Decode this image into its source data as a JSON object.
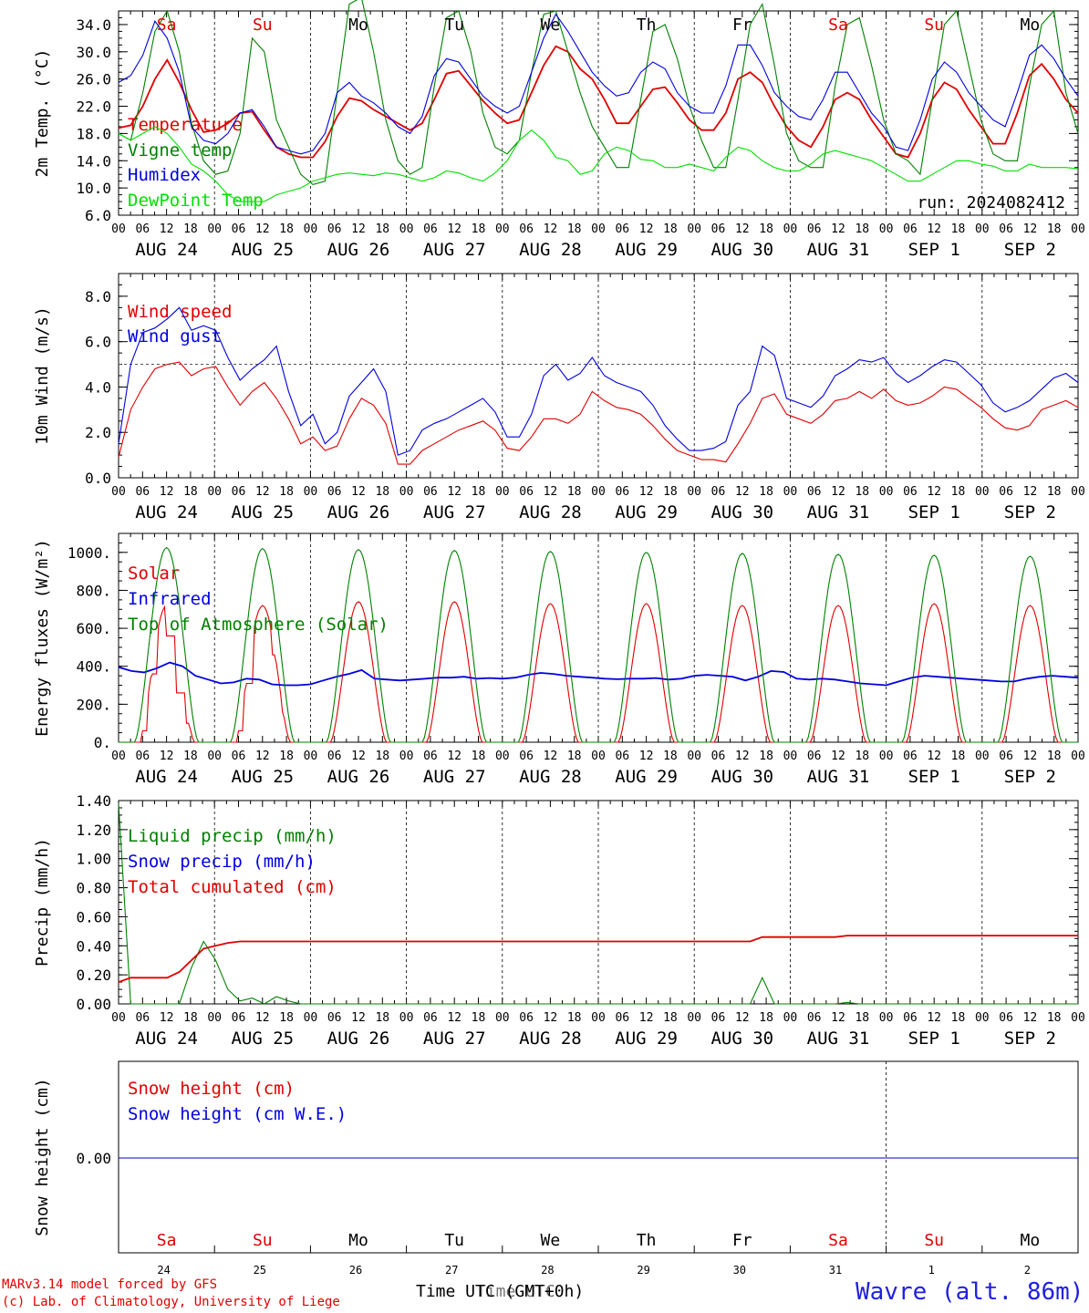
{
  "chart_data": [
    {
      "type": "line",
      "id": "temp",
      "ylabel": "2m Temp. (°C)",
      "ylim": [
        6,
        36
      ],
      "yticks": [
        "6.0",
        "10.0",
        "14.0",
        "18.0",
        "22.0",
        "26.0",
        "30.0",
        "34.0"
      ],
      "note": "run: 2024082412",
      "series": [
        {
          "name": "Temperature",
          "color": "#e00000",
          "values": [
            18.8,
            19.2,
            22,
            26,
            28.8,
            25.5,
            21.5,
            18.2,
            18.5,
            19.5,
            21,
            21.2,
            18.5,
            16,
            15,
            14.5,
            14.5,
            16.8,
            20.5,
            23.2,
            22.8,
            21.5,
            20.5,
            19.5,
            18.5,
            19.5,
            23,
            26.8,
            27.2,
            25,
            22.8,
            21,
            19.5,
            20,
            24,
            28,
            30.8,
            30,
            27.5,
            26,
            23,
            19.5,
            19.5,
            22,
            24.5,
            24.8,
            22.5,
            20,
            18.5,
            18.5,
            21,
            26,
            27,
            25.5,
            22,
            19,
            17,
            16,
            19,
            23,
            24,
            23,
            20,
            17.5,
            15,
            14.5,
            18,
            23,
            25.5,
            24.5,
            21.5,
            19,
            16.5,
            16.5,
            21,
            26.5,
            28.2,
            26,
            23,
            21
          ]
        },
        {
          "name": "Vigne temp",
          "color": "#008000",
          "values": [
            18,
            17,
            24,
            33,
            36,
            30,
            19.5,
            14,
            12,
            12.5,
            18,
            32,
            30,
            20,
            16,
            12,
            10.5,
            11,
            24,
            37,
            38,
            30,
            20,
            14,
            12,
            13,
            25,
            35,
            36,
            30,
            21,
            16,
            15,
            17,
            27,
            35.5,
            36,
            30,
            24,
            19,
            16,
            13,
            13,
            23,
            33,
            34,
            29,
            22,
            17,
            13,
            13,
            23,
            34,
            37,
            28,
            18,
            14,
            13,
            13,
            25,
            34,
            35,
            28,
            20,
            15,
            14,
            12,
            23,
            34,
            36,
            28,
            20,
            15,
            14,
            14,
            25,
            34,
            36,
            24,
            18
          ]
        },
        {
          "name": "Humidex",
          "color": "#0000e0",
          "values": [
            25.5,
            26.5,
            29.5,
            34.5,
            32,
            27,
            19,
            17,
            16.5,
            18,
            21,
            21.5,
            19,
            16,
            15.5,
            15,
            15.5,
            18,
            24,
            25.5,
            23.5,
            22.5,
            21,
            19,
            18,
            20.5,
            26.5,
            29,
            28.5,
            26,
            23.5,
            22,
            21,
            22,
            27,
            32,
            35.5,
            33,
            30,
            27,
            25,
            23.5,
            24,
            27,
            28.5,
            27.5,
            24,
            22,
            21,
            21,
            25,
            31,
            31,
            28,
            24,
            22,
            20.5,
            20,
            23,
            27,
            27,
            24,
            21,
            19,
            16,
            15.5,
            20,
            26,
            28.5,
            27,
            24,
            22,
            20,
            19,
            24,
            29.5,
            31,
            29,
            26,
            23.5
          ]
        },
        {
          "name": "DewPoint Temp",
          "color": "#00e000",
          "values": [
            18,
            17,
            18,
            19,
            18,
            16,
            13.5,
            12.5,
            11,
            9,
            8,
            8,
            8,
            9,
            9.5,
            10,
            11,
            11.5,
            12,
            12.2,
            12,
            11.8,
            12.2,
            12,
            11.5,
            11,
            11.5,
            12.5,
            12.2,
            11.5,
            11,
            12.2,
            14,
            17,
            18.5,
            17,
            14.5,
            14,
            12,
            12.5,
            15,
            16,
            15.5,
            14.2,
            14,
            13,
            13,
            13.5,
            13,
            12.5,
            14.5,
            16,
            15.5,
            14,
            13,
            12.5,
            12.5,
            13.5,
            15,
            15.5,
            15,
            14.5,
            14,
            13,
            12,
            11,
            11,
            12,
            13,
            14,
            14,
            13.5,
            13.2,
            12.5,
            12.5,
            13.5,
            13,
            13,
            13,
            12.8
          ]
        }
      ]
    },
    {
      "type": "line",
      "id": "wind",
      "ylabel": "10m Wind (m/s)",
      "ylim": [
        0,
        9
      ],
      "yticks": [
        "0.0",
        "2.0",
        "4.0",
        "6.0",
        "8.0"
      ],
      "ref_line": 5,
      "series": [
        {
          "name": "Wind speed",
          "color": "#e00000",
          "values": [
            0.9,
            3,
            4,
            4.8,
            5,
            5.1,
            4.5,
            4.8,
            4.9,
            4,
            3.2,
            3.8,
            4.2,
            3.5,
            2.6,
            1.5,
            1.8,
            1.2,
            1.4,
            2.6,
            3.5,
            3.2,
            2.4,
            0.6,
            0.6,
            1.2,
            1.5,
            1.8,
            2.1,
            2.3,
            2.5,
            2.1,
            1.3,
            1.2,
            1.8,
            2.6,
            2.6,
            2.4,
            2.8,
            3.8,
            3.4,
            3.1,
            3,
            2.8,
            2.3,
            1.7,
            1.2,
            1,
            0.8,
            0.8,
            0.7,
            1.5,
            2.4,
            3.5,
            3.7,
            2.8,
            2.6,
            2.4,
            2.8,
            3.4,
            3.5,
            3.8,
            3.5,
            3.9,
            3.4,
            3.2,
            3.3,
            3.6,
            4,
            3.9,
            3.5,
            3.1,
            2.6,
            2.2,
            2.1,
            2.3,
            3,
            3.2,
            3.4,
            3.1
          ]
        },
        {
          "name": "Wind gust",
          "color": "#0000e0",
          "values": [
            1.5,
            5,
            6.4,
            6.6,
            7,
            7.5,
            6.5,
            6.7,
            6.5,
            5.3,
            4.3,
            4.8,
            5.2,
            5.8,
            3.8,
            2.3,
            2.8,
            1.5,
            2,
            3.6,
            4.2,
            4.8,
            3.8,
            1,
            1.2,
            2.1,
            2.4,
            2.6,
            2.9,
            3.2,
            3.5,
            2.9,
            1.8,
            1.8,
            2.8,
            4.5,
            5,
            4.3,
            4.6,
            5.3,
            4.5,
            4.2,
            4,
            3.8,
            3.2,
            2.3,
            1.7,
            1.2,
            1.2,
            1.3,
            1.6,
            3.2,
            3.8,
            5.8,
            5.4,
            3.5,
            3.3,
            3.1,
            3.6,
            4.5,
            4.8,
            5.2,
            5.1,
            5.3,
            4.6,
            4.2,
            4.5,
            4.9,
            5.2,
            5.1,
            4.6,
            4.1,
            3.3,
            2.9,
            3.1,
            3.4,
            3.9,
            4.4,
            4.6,
            4.2
          ]
        }
      ]
    },
    {
      "type": "line",
      "id": "energy",
      "ylabel": "Energy fluxes (W/m²)",
      "ylim": [
        0,
        1100
      ],
      "yticks": [
        "0.",
        "200.",
        "400.",
        "600.",
        "800.",
        "1000."
      ],
      "solar_peaks": [
        720,
        720,
        740,
        740,
        730,
        730,
        720,
        720,
        730,
        720
      ],
      "toa_peaks": [
        1025,
        1020,
        1015,
        1010,
        1005,
        1000,
        995,
        990,
        985,
        980
      ],
      "solar_day0_shape": [
        0,
        0,
        0,
        300,
        700,
        500,
        200,
        40,
        0,
        0
      ],
      "solar_day1_shape": [
        0,
        0,
        0,
        250,
        650,
        750,
        400,
        100,
        0,
        0
      ],
      "series": [
        {
          "name": "Solar",
          "color": "#e00000",
          "values": []
        },
        {
          "name": "Infrared",
          "color": "#0000e0",
          "values": [
            395,
            375,
            368,
            390,
            420,
            400,
            350,
            330,
            310,
            315,
            335,
            330,
            305,
            300,
            300,
            305,
            325,
            345,
            360,
            380,
            335,
            330,
            325,
            330,
            335,
            340,
            340,
            345,
            335,
            338,
            335,
            340,
            355,
            365,
            360,
            350,
            345,
            340,
            335,
            332,
            335,
            335,
            338,
            330,
            335,
            350,
            355,
            350,
            345,
            325,
            345,
            375,
            370,
            335,
            330,
            335,
            330,
            320,
            310,
            305,
            300,
            320,
            340,
            350,
            345,
            340,
            335,
            330,
            325,
            320,
            320,
            335,
            345,
            350,
            345,
            340
          ]
        },
        {
          "name": "Top of Atmosphere (Solar)",
          "color": "#008000",
          "values": []
        }
      ]
    },
    {
      "type": "line",
      "id": "precip",
      "ylabel": "Precip (mm/h)",
      "ylim": [
        0,
        1.4
      ],
      "yticks": [
        "0.00",
        "0.20",
        "0.40",
        "0.60",
        "0.80",
        "1.00",
        "1.20",
        "1.40"
      ],
      "series": [
        {
          "name": "Liquid precip (mm/h)",
          "color": "#008000",
          "values": [
            1.38,
            0,
            0,
            0,
            0,
            0,
            0.25,
            0.43,
            0.3,
            0.1,
            0.02,
            0.04,
            0,
            0.05,
            0.02,
            0,
            0,
            0,
            0,
            0,
            0,
            0,
            0,
            0,
            0,
            0,
            0,
            0,
            0,
            0,
            0,
            0,
            0,
            0,
            0,
            0,
            0,
            0,
            0,
            0,
            0,
            0,
            0,
            0,
            0,
            0,
            0,
            0,
            0,
            0,
            0,
            0,
            0,
            0.18,
            0,
            0,
            0,
            0,
            0,
            0,
            0.01,
            0,
            0,
            0,
            0,
            0,
            0,
            0,
            0,
            0,
            0,
            0,
            0,
            0,
            0,
            0,
            0,
            0,
            0,
            0
          ]
        },
        {
          "name": "Snow precip (mm/h)",
          "color": "#0000e0",
          "values": []
        },
        {
          "name": "Total cumulated (cm)",
          "color": "#e00000",
          "values": [
            0.15,
            0.18,
            0.18,
            0.18,
            0.18,
            0.22,
            0.3,
            0.38,
            0.4,
            0.42,
            0.43,
            0.43,
            0.43,
            0.43,
            0.43,
            0.43,
            0.43,
            0.43,
            0.43,
            0.43,
            0.43,
            0.43,
            0.43,
            0.43,
            0.43,
            0.43,
            0.43,
            0.43,
            0.43,
            0.43,
            0.43,
            0.43,
            0.43,
            0.43,
            0.43,
            0.43,
            0.43,
            0.43,
            0.43,
            0.43,
            0.43,
            0.43,
            0.43,
            0.43,
            0.43,
            0.43,
            0.43,
            0.43,
            0.43,
            0.43,
            0.43,
            0.43,
            0.43,
            0.46,
            0.46,
            0.46,
            0.46,
            0.46,
            0.46,
            0.46,
            0.47,
            0.47,
            0.47,
            0.47,
            0.47,
            0.47,
            0.47,
            0.47,
            0.47,
            0.47,
            0.47,
            0.47,
            0.47,
            0.47,
            0.47,
            0.47,
            0.47,
            0.47,
            0.47,
            0.47
          ]
        }
      ]
    },
    {
      "type": "line",
      "id": "snow",
      "ylabel": "Snow height (cm)",
      "yticks": [
        "0.00"
      ],
      "series": [
        {
          "name": "Snow height (cm)",
          "color": "#e00000",
          "values": [
            0,
            0
          ]
        },
        {
          "name": "Snow height (cm W.E.)",
          "color": "#0000e0",
          "values": [
            0,
            0
          ]
        }
      ]
    }
  ],
  "hour_ticks": [
    "00",
    "06",
    "12",
    "18"
  ],
  "final_tick": "00",
  "dates": [
    "AUG 24",
    "AUG 25",
    "AUG 26",
    "AUG 27",
    "AUG 28",
    "AUG 29",
    "AUG 30",
    "AUG 31",
    "SEP  1",
    "SEP  2"
  ],
  "weekdays": [
    {
      "label": "Sa",
      "color": "#e00000"
    },
    {
      "label": "Su",
      "color": "#e00000"
    },
    {
      "label": "Mo",
      "color": "#000000"
    },
    {
      "label": "Tu",
      "color": "#000000"
    },
    {
      "label": "We",
      "color": "#000000"
    },
    {
      "label": "Th",
      "color": "#000000"
    },
    {
      "label": "Fr",
      "color": "#000000"
    },
    {
      "label": "Sa",
      "color": "#e00000"
    },
    {
      "label": "Su",
      "color": "#e00000"
    },
    {
      "label": "Mo",
      "color": "#000000"
    }
  ],
  "day_numbers": [
    "24",
    "25",
    "26",
    "27",
    "28",
    "29",
    "30",
    "31",
    "1",
    "2"
  ],
  "footer": {
    "credit_line1": "MARv3.14 model forced by GFS",
    "credit_line2": "(c) Lab. of Climatology, University of Liege",
    "time_label": "Time UTC (GMT+0h)",
    "overlay_label": "Time UTC",
    "location": "Wavre (alt. 86m)"
  }
}
